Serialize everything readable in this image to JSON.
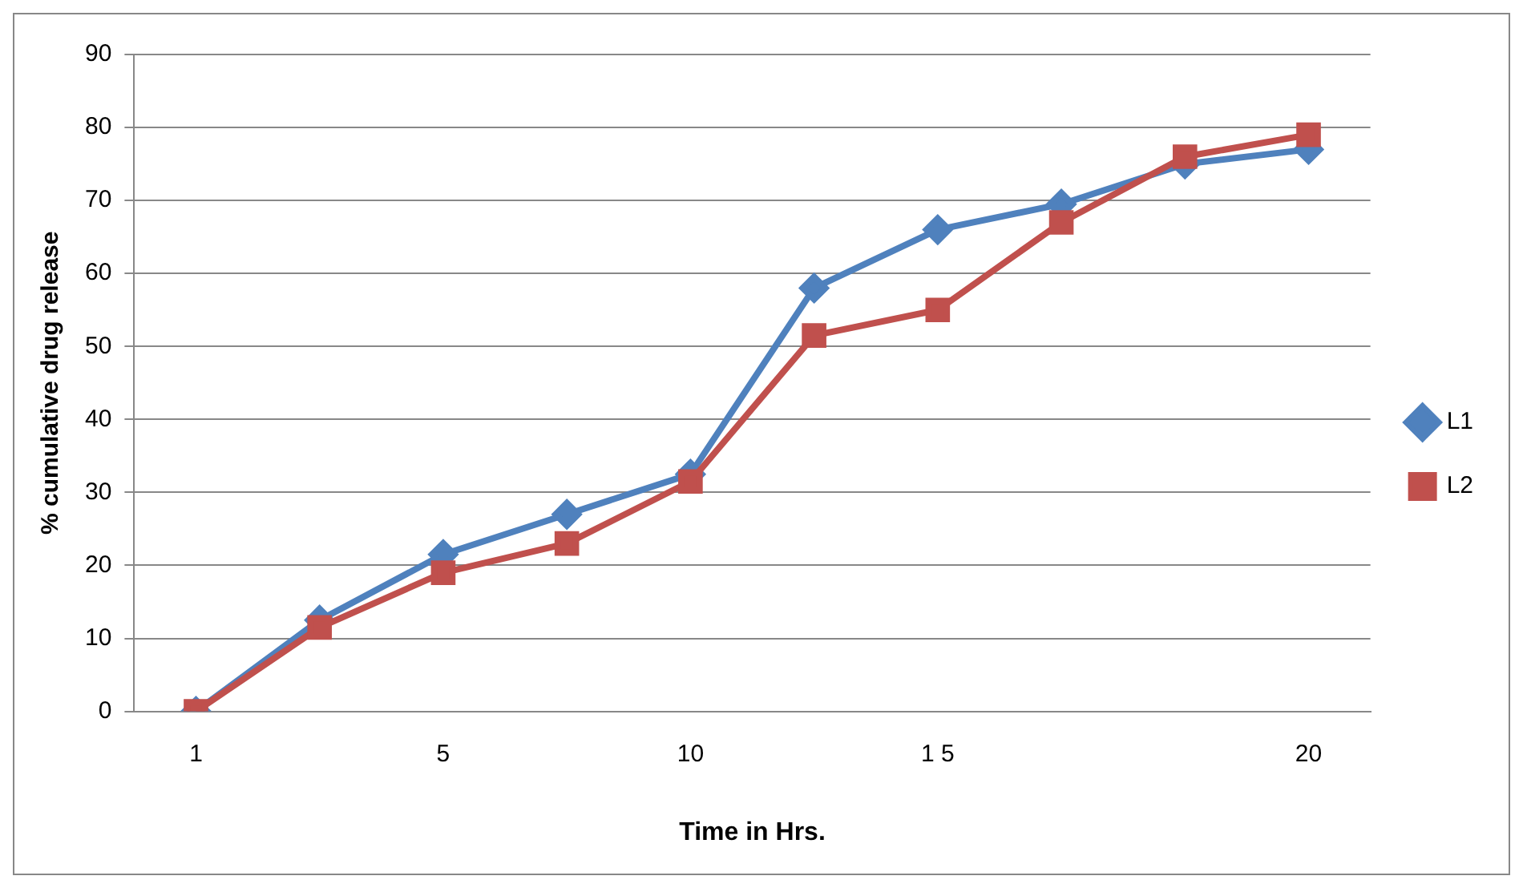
{
  "chart_data": {
    "type": "line",
    "xlabel": "Time in Hrs.",
    "ylabel": "% cumulative drug release",
    "categories": [
      "1",
      null,
      "5",
      null,
      "10",
      null,
      "1 5",
      null,
      null,
      "20"
    ],
    "series": [
      {
        "name": "L1",
        "color": "#4f81bd",
        "marker": "diamond",
        "values": [
          0,
          12.5,
          21.5,
          27,
          32.5,
          58,
          66,
          69.5,
          75,
          77
        ]
      },
      {
        "name": "L2",
        "color": "#c0504d",
        "marker": "square",
        "values": [
          0,
          11.5,
          19,
          23,
          31.5,
          51.5,
          55,
          67,
          76,
          79
        ]
      }
    ],
    "ylim": [
      0,
      90
    ],
    "yticks": [
      0,
      10,
      20,
      30,
      40,
      50,
      60,
      70,
      80,
      90
    ],
    "grid": "y",
    "legend": "right"
  }
}
